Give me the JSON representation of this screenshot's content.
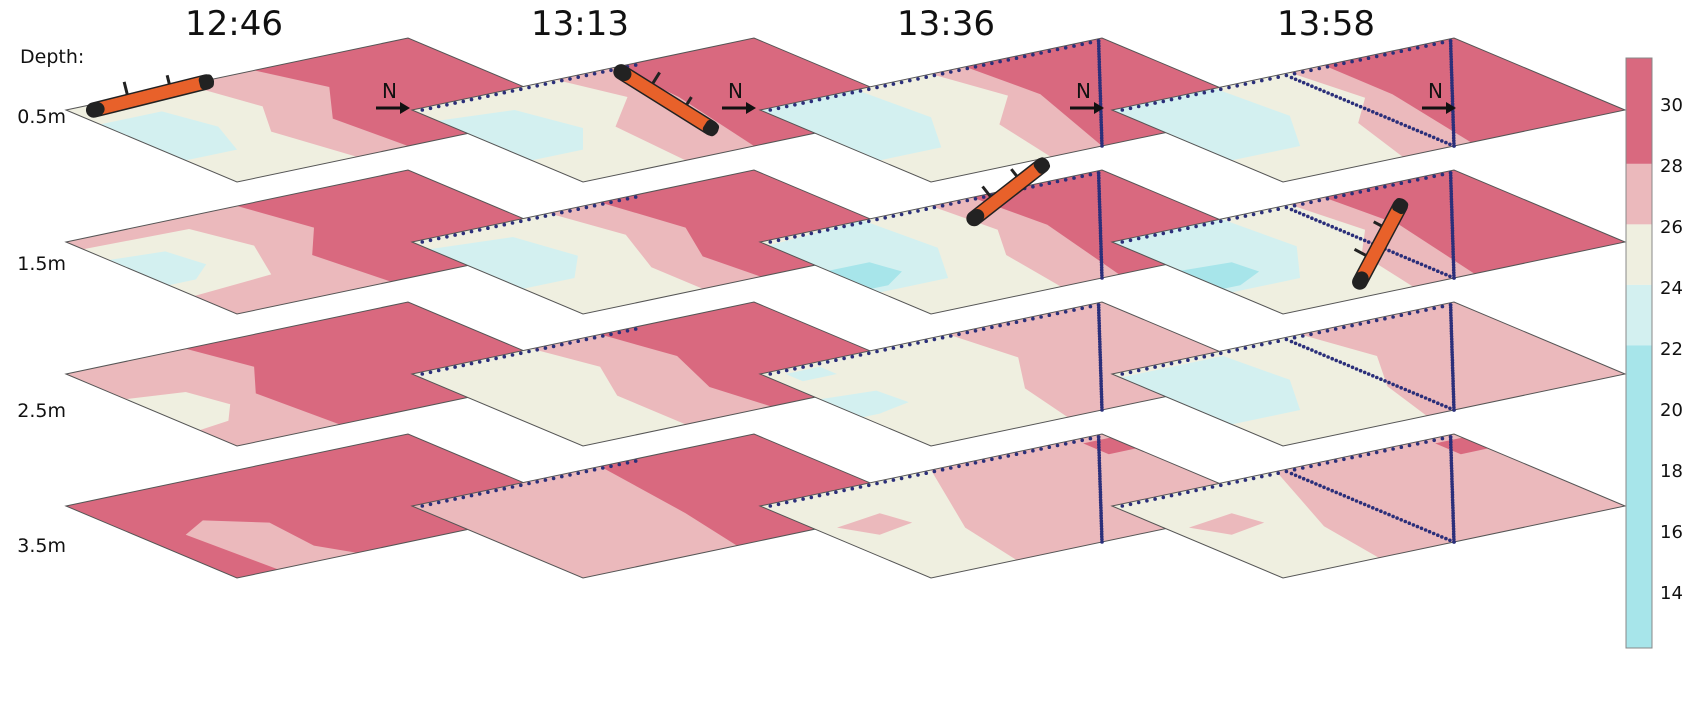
{
  "titles": [
    "12:46",
    "13:13",
    "13:36",
    "13:58"
  ],
  "depth_heading": "Depth:",
  "depths": [
    "0.5m",
    "1.5m",
    "2.5m",
    "3.5m"
  ],
  "north_label": "N",
  "colorbar": {
    "ticks": [
      "30",
      "28",
      "26",
      "24",
      "22",
      "20",
      "18",
      "16",
      "14"
    ],
    "bands": [
      {
        "range": [
          28,
          31.5
        ],
        "color": "#d9697f"
      },
      {
        "range": [
          26,
          28
        ],
        "color": "#ebb9bc"
      },
      {
        "range": [
          24,
          26
        ],
        "color": "#efefe0"
      },
      {
        "range": [
          22,
          24
        ],
        "color": "#d3f0f0"
      },
      {
        "range": [
          12,
          22
        ],
        "color": "#a7e5ea"
      }
    ]
  },
  "colors": {
    "hot": "#d9697f",
    "warm": "#ebb9bc",
    "neutral": "#efefe0",
    "cool": "#d3f0f0",
    "cold": "#a7e5ea",
    "track": "#2b2f7a",
    "vehicle": "#e8612a"
  }
}
